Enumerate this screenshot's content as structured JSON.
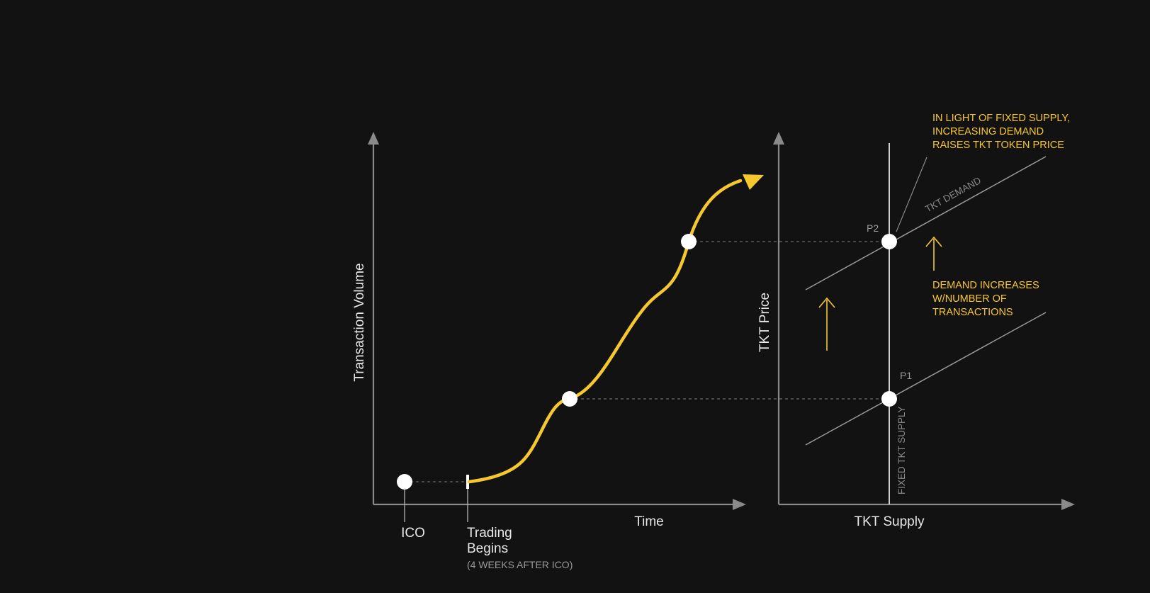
{
  "left_chart": {
    "y_axis_label": "Transaction Volume",
    "x_axis_label": "Time",
    "ico_label": "ICO",
    "trading_label_line1": "Trading",
    "trading_label_line2": "Begins",
    "trading_note": "(4 WEEKS AFTER ICO)"
  },
  "right_chart": {
    "y_axis_label": "TKT Price",
    "x_axis_label": "TKT Supply",
    "p1_label": "P1",
    "p2_label": "P2",
    "demand_line_label": "TKT DEMAND",
    "supply_line_label": "FIXED TKT SUPPLY",
    "top_note": [
      "IN LIGHT OF FIXED SUPPLY,",
      "INCREASING DEMAND",
      "RAISES TKT TOKEN PRICE"
    ],
    "middle_note": [
      "DEMAND INCREASES",
      "W/NUMBER OF",
      "TRANSACTIONS"
    ]
  },
  "colors": {
    "background": "#121212",
    "accent": "#f7c72e",
    "axis": "#8a8a8a",
    "marker": "#ffffff"
  }
}
